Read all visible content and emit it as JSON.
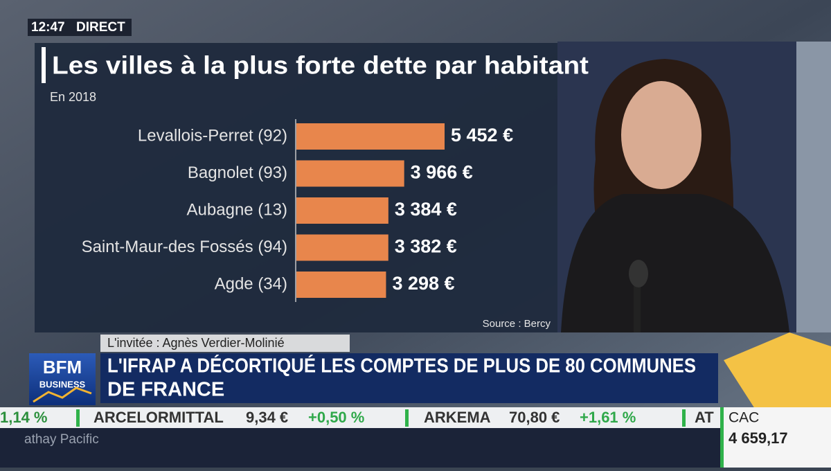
{
  "broadcast": {
    "time": "12:47",
    "live": "DIRECT",
    "guest": "L'invitée : Agnès Verdier-Molinié",
    "headline_line1": "L'IFRAP A DÉCORTIQUÉ LES COMPTES DE PLUS DE 80 COMMUNES",
    "headline_line2": "DE FRANCE",
    "logo_top": "BFM",
    "logo_bottom": "BUSINESS"
  },
  "ticker": {
    "items": [
      "1,14 %",
      "ARCELORMITTAL",
      "9,34 €",
      "+0,50 %",
      "ARKEMA",
      "70,80 €",
      "+1,61 %",
      "AT"
    ],
    "news": "athay Pacific",
    "index_name": "CAC",
    "index_value": "4 659,17"
  },
  "chart_data": {
    "type": "bar",
    "orientation": "horizontal",
    "title": "Les villes à la plus forte dette par habitant",
    "subtitle": "En 2018",
    "source": "Source : Bercy",
    "categories": [
      "Levallois-Perret (92)",
      "Bagnolet (93)",
      "Aubagne (13)",
      "Saint-Maur-des Fossés (94)",
      "Agde (34)"
    ],
    "values": [
      5452,
      3966,
      3384,
      3382,
      3298
    ],
    "value_labels": [
      "5 452 €",
      "3 966 €",
      "3 384 €",
      "3 382 €",
      "3 298 €"
    ],
    "color": "#e8864c"
  }
}
